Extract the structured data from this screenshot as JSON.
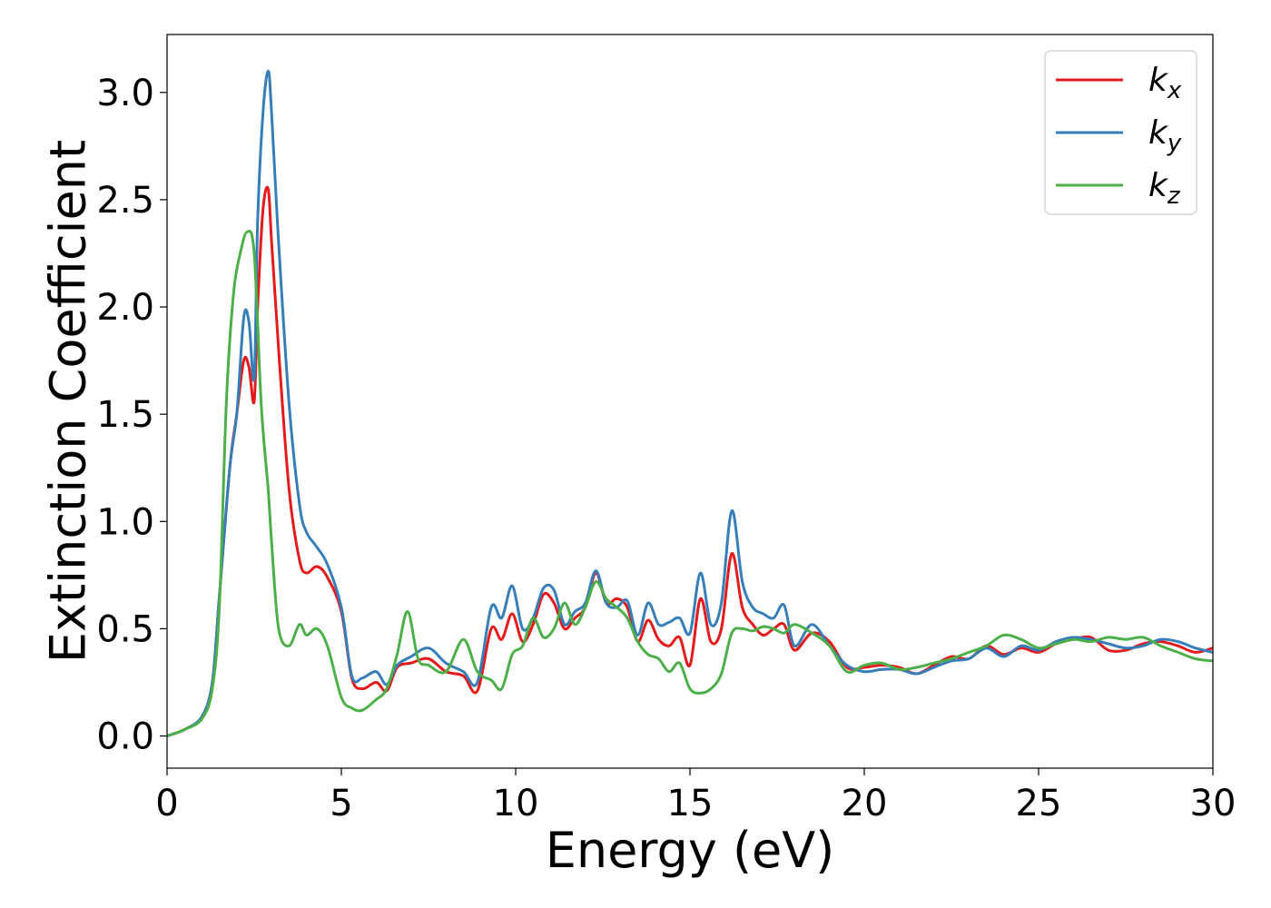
{
  "chart_data": {
    "type": "line",
    "title": "",
    "xlabel": "Energy (eV)",
    "ylabel": "Extinction Coefficient",
    "xlim": [
      0,
      30
    ],
    "ylim": [
      -0.15,
      3.27
    ],
    "xticks": [
      0,
      5,
      10,
      15,
      20,
      25,
      30
    ],
    "xtick_labels": [
      "0",
      "5",
      "10",
      "15",
      "20",
      "25",
      "30"
    ],
    "yticks": [
      0.0,
      0.5,
      1.0,
      1.5,
      2.0,
      2.5,
      3.0
    ],
    "ytick_labels": [
      "0.0",
      "0.5",
      "1.0",
      "1.5",
      "2.0",
      "2.5",
      "3.0"
    ],
    "grid": false,
    "legend_position": "top-right",
    "series": [
      {
        "name": "k_x",
        "label_main": "k",
        "label_sub": "x",
        "color": "#e41a1c",
        "x": [
          0,
          0.5,
          1.0,
          1.3,
          1.5,
          1.8,
          2.0,
          2.2,
          2.35,
          2.5,
          2.6,
          2.75,
          2.9,
          3.0,
          3.2,
          3.5,
          3.8,
          4.0,
          4.3,
          4.6,
          5.0,
          5.3,
          5.6,
          6.0,
          6.3,
          6.6,
          7.0,
          7.5,
          8.0,
          8.5,
          8.9,
          9.3,
          9.6,
          9.9,
          10.2,
          10.5,
          10.8,
          11.1,
          11.4,
          11.7,
          12.0,
          12.3,
          12.6,
          12.9,
          13.2,
          13.5,
          13.8,
          14.1,
          14.4,
          14.7,
          15.0,
          15.3,
          15.6,
          15.9,
          16.2,
          16.5,
          16.8,
          17.1,
          17.4,
          17.7,
          18.0,
          18.5,
          19.0,
          19.5,
          20.0,
          20.5,
          21.0,
          21.5,
          22.0,
          22.5,
          23.0,
          23.5,
          24.0,
          24.5,
          25.0,
          25.5,
          26.0,
          26.5,
          27.0,
          27.5,
          28.0,
          28.5,
          29.0,
          29.5,
          30.0
        ],
        "values": [
          0.0,
          0.03,
          0.09,
          0.25,
          0.65,
          1.25,
          1.5,
          1.75,
          1.72,
          1.56,
          2.0,
          2.45,
          2.55,
          2.3,
          1.8,
          1.15,
          0.82,
          0.76,
          0.79,
          0.74,
          0.58,
          0.27,
          0.22,
          0.25,
          0.21,
          0.32,
          0.34,
          0.36,
          0.3,
          0.28,
          0.21,
          0.5,
          0.45,
          0.57,
          0.44,
          0.52,
          0.66,
          0.62,
          0.5,
          0.55,
          0.6,
          0.76,
          0.62,
          0.64,
          0.6,
          0.44,
          0.54,
          0.45,
          0.42,
          0.46,
          0.33,
          0.64,
          0.44,
          0.5,
          0.85,
          0.6,
          0.52,
          0.47,
          0.5,
          0.52,
          0.4,
          0.48,
          0.44,
          0.32,
          0.32,
          0.33,
          0.32,
          0.29,
          0.33,
          0.37,
          0.36,
          0.42,
          0.38,
          0.41,
          0.39,
          0.43,
          0.45,
          0.46,
          0.4,
          0.4,
          0.43,
          0.44,
          0.42,
          0.39,
          0.41
        ]
      },
      {
        "name": "k_y",
        "label_main": "k",
        "label_sub": "y",
        "color": "#377eb8",
        "x": [
          0,
          0.5,
          1.0,
          1.3,
          1.5,
          1.8,
          2.0,
          2.2,
          2.35,
          2.5,
          2.6,
          2.75,
          2.9,
          3.0,
          3.2,
          3.5,
          3.8,
          4.0,
          4.3,
          4.6,
          5.0,
          5.3,
          5.6,
          6.0,
          6.3,
          6.6,
          7.0,
          7.5,
          8.0,
          8.5,
          8.9,
          9.3,
          9.6,
          9.9,
          10.2,
          10.5,
          10.8,
          11.1,
          11.4,
          11.7,
          12.0,
          12.3,
          12.6,
          12.9,
          13.2,
          13.5,
          13.8,
          14.1,
          14.4,
          14.7,
          15.0,
          15.3,
          15.6,
          15.9,
          16.2,
          16.5,
          16.8,
          17.1,
          17.4,
          17.7,
          18.0,
          18.5,
          19.0,
          19.5,
          20.0,
          20.5,
          21.0,
          21.5,
          22.0,
          22.5,
          23.0,
          23.5,
          24.0,
          24.5,
          25.0,
          25.5,
          26.0,
          26.5,
          27.0,
          27.5,
          28.0,
          28.5,
          29.0,
          29.5,
          30.0
        ],
        "values": [
          0.0,
          0.03,
          0.09,
          0.25,
          0.65,
          1.25,
          1.5,
          1.95,
          1.93,
          1.67,
          2.4,
          2.9,
          3.1,
          2.9,
          2.3,
          1.55,
          1.08,
          0.95,
          0.88,
          0.8,
          0.6,
          0.28,
          0.27,
          0.3,
          0.24,
          0.33,
          0.37,
          0.41,
          0.34,
          0.3,
          0.25,
          0.6,
          0.55,
          0.7,
          0.5,
          0.55,
          0.69,
          0.68,
          0.52,
          0.58,
          0.62,
          0.77,
          0.62,
          0.6,
          0.63,
          0.47,
          0.62,
          0.52,
          0.53,
          0.55,
          0.48,
          0.76,
          0.52,
          0.62,
          1.05,
          0.72,
          0.6,
          0.57,
          0.55,
          0.61,
          0.42,
          0.52,
          0.42,
          0.33,
          0.3,
          0.31,
          0.31,
          0.29,
          0.32,
          0.35,
          0.36,
          0.41,
          0.37,
          0.42,
          0.4,
          0.44,
          0.46,
          0.45,
          0.43,
          0.41,
          0.42,
          0.45,
          0.44,
          0.41,
          0.39
        ]
      },
      {
        "name": "k_z",
        "label_main": "k",
        "label_sub": "z",
        "color": "#4daf4a",
        "x": [
          0,
          0.5,
          1.0,
          1.3,
          1.5,
          1.7,
          1.9,
          2.1,
          2.3,
          2.5,
          2.7,
          2.9,
          3.0,
          3.2,
          3.5,
          3.8,
          4.0,
          4.3,
          4.6,
          5.0,
          5.3,
          5.6,
          6.0,
          6.3,
          6.6,
          6.9,
          7.2,
          7.5,
          8.0,
          8.5,
          8.9,
          9.3,
          9.6,
          9.9,
          10.2,
          10.5,
          10.8,
          11.1,
          11.4,
          11.7,
          12.0,
          12.3,
          12.6,
          12.9,
          13.2,
          13.5,
          13.8,
          14.1,
          14.4,
          14.7,
          15.0,
          15.3,
          15.6,
          15.9,
          16.2,
          16.5,
          16.8,
          17.1,
          17.4,
          17.7,
          18.0,
          18.5,
          19.0,
          19.5,
          20.0,
          20.5,
          21.0,
          21.5,
          22.0,
          22.5,
          23.0,
          23.5,
          24.0,
          24.5,
          25.0,
          25.5,
          26.0,
          26.5,
          27.0,
          27.5,
          28.0,
          28.5,
          29.0,
          29.5,
          30.0
        ],
        "values": [
          0.0,
          0.03,
          0.08,
          0.22,
          0.6,
          1.55,
          2.05,
          2.25,
          2.35,
          2.25,
          1.55,
          1.15,
          0.9,
          0.5,
          0.42,
          0.52,
          0.47,
          0.5,
          0.42,
          0.18,
          0.13,
          0.12,
          0.17,
          0.22,
          0.38,
          0.58,
          0.36,
          0.33,
          0.3,
          0.45,
          0.3,
          0.26,
          0.22,
          0.38,
          0.42,
          0.55,
          0.46,
          0.5,
          0.62,
          0.52,
          0.6,
          0.72,
          0.64,
          0.6,
          0.55,
          0.44,
          0.38,
          0.36,
          0.3,
          0.34,
          0.22,
          0.2,
          0.22,
          0.29,
          0.48,
          0.5,
          0.49,
          0.51,
          0.5,
          0.48,
          0.52,
          0.48,
          0.42,
          0.3,
          0.33,
          0.34,
          0.31,
          0.32,
          0.34,
          0.36,
          0.39,
          0.42,
          0.47,
          0.45,
          0.41,
          0.43,
          0.45,
          0.44,
          0.46,
          0.45,
          0.46,
          0.42,
          0.39,
          0.36,
          0.35
        ]
      }
    ]
  }
}
